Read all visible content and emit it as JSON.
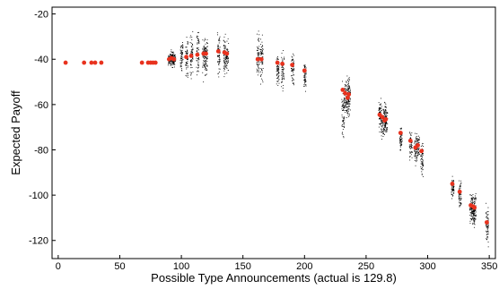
{
  "chart_data": {
    "type": "scatter",
    "title": "",
    "xlabel": "Possible Type Announcements (actual is 129.8)",
    "ylabel": "Expected Payoff",
    "xlim": [
      -5,
      355
    ],
    "ylim": [
      -128,
      -17
    ],
    "xticks": [
      0,
      50,
      100,
      150,
      200,
      250,
      300,
      350
    ],
    "yticks": [
      -20,
      -40,
      -60,
      -80,
      -100,
      -120
    ],
    "grid": false,
    "legend": "none",
    "mean_color": "#e8321e",
    "sample_color": "#000000",
    "series": [
      {
        "kind": "mean",
        "x": [
          6,
          21,
          27,
          30,
          35,
          68,
          73,
          75,
          77,
          79,
          90,
          92,
          94,
          104,
          108,
          113,
          118,
          120,
          130,
          135,
          137,
          162,
          165,
          178,
          182,
          190,
          200,
          231,
          233,
          235,
          236,
          261,
          263,
          265,
          266,
          278,
          286,
          290,
          292,
          295,
          320,
          326,
          335,
          337,
          338,
          348
        ],
        "y": [
          -41.5,
          -41.5,
          -41.5,
          -41.5,
          -41.5,
          -41.5,
          -41.5,
          -41.5,
          -41.5,
          -41.5,
          -40,
          -39.5,
          -40,
          -39,
          -38.5,
          -38,
          -37.5,
          -37.5,
          -36.5,
          -37,
          -37.5,
          -40,
          -40,
          -41.5,
          -42,
          -42.5,
          -45,
          -53.5,
          -55,
          -57,
          -55.5,
          -64.5,
          -65.5,
          -67,
          -66.5,
          -72.5,
          -76,
          -79,
          -78,
          -80.5,
          -95,
          -98.5,
          -104.5,
          -105,
          -105.5,
          -112
        ]
      },
      {
        "kind": "sample-spread",
        "x": [
          90,
          92,
          94,
          100,
          104,
          108,
          113,
          118,
          120,
          130,
          135,
          137,
          162,
          165,
          178,
          182,
          190,
          200,
          231,
          233,
          235,
          236,
          261,
          263,
          265,
          266,
          278,
          286,
          290,
          292,
          295,
          320,
          326,
          335,
          337,
          338,
          348
        ],
        "y_min": [
          -43,
          -44,
          -44,
          -46,
          -52,
          -51,
          -54,
          -52,
          -50,
          -51,
          -51,
          -48,
          -52,
          -54,
          -54,
          -58,
          -54,
          -56,
          -80,
          -68,
          -69,
          -68,
          -74,
          -78,
          -77,
          -76,
          -82,
          -86,
          -89,
          -88,
          -94,
          -103,
          -108,
          -115,
          -118,
          -116,
          -125
        ],
        "y_max": [
          -37,
          -35,
          -36,
          -30,
          -27,
          -25,
          -21,
          -26,
          -27,
          -24,
          -26,
          -30,
          -24,
          -25,
          -36,
          -32,
          -33,
          -38,
          -48,
          -45,
          -44,
          -46,
          -55,
          -58,
          -55,
          -57,
          -67,
          -69,
          -69,
          -68,
          -73,
          -91,
          -91,
          -95,
          -95,
          -96,
          -102
        ]
      }
    ]
  }
}
